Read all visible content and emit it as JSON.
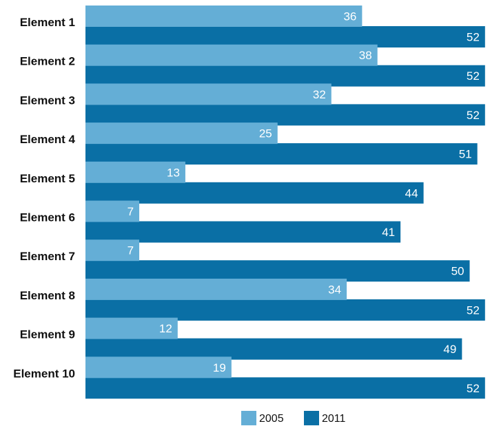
{
  "chart_data": {
    "type": "bar",
    "orientation": "horizontal",
    "categories": [
      "Element 1",
      "Element 2",
      "Element 3",
      "Element 4",
      "Element 5",
      "Element 6",
      "Element 7",
      "Element 8",
      "Element 9",
      "Element 10"
    ],
    "series": [
      {
        "name": "2005",
        "color": "#64aed6",
        "values": [
          36,
          38,
          32,
          25,
          13,
          7,
          7,
          34,
          12,
          19
        ]
      },
      {
        "name": "2011",
        "color": "#0a6fa5",
        "values": [
          52,
          52,
          52,
          51,
          44,
          41,
          50,
          52,
          49,
          52
        ]
      }
    ],
    "xlim": [
      0,
      52
    ],
    "grid": false,
    "legend_position": "bottom",
    "title": "",
    "xlabel": "",
    "ylabel": ""
  }
}
